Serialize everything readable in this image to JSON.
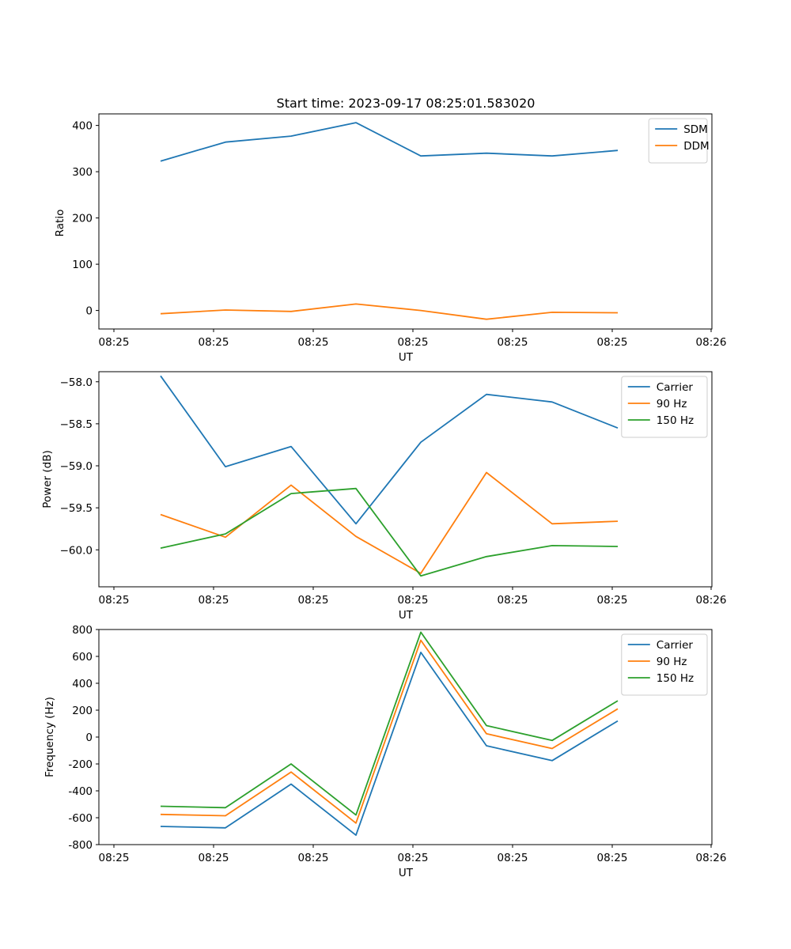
{
  "chart_data": [
    {
      "type": "line",
      "title": "Start time: 2023-09-17 08:25:01.583020",
      "xlabel": "UT",
      "ylabel": "Ratio",
      "x_ticks": [
        "08:25",
        "08:25",
        "08:25",
        "08:25",
        "08:25",
        "08:25",
        "08:25"
      ],
      "x_end_tick": "08:26",
      "y_ticks": [
        0,
        100,
        200,
        300,
        400
      ],
      "ylim": [
        -40,
        425
      ],
      "legend_position": "top-right",
      "series": [
        {
          "name": "SDM",
          "color": "#1f77b4",
          "values": [
            323,
            364,
            377,
            406,
            334,
            340,
            334,
            346
          ]
        },
        {
          "name": "DDM",
          "color": "#ff7f0e",
          "values": [
            -7,
            1,
            -2,
            14,
            0,
            -19,
            -4,
            -5
          ]
        }
      ]
    },
    {
      "type": "line",
      "title": "",
      "xlabel": "UT",
      "ylabel": "Power (dB)",
      "x_ticks": [
        "08:25",
        "08:25",
        "08:25",
        "08:25",
        "08:25",
        "08:25",
        "08:25"
      ],
      "x_end_tick": "08:26",
      "y_ticks": [
        "−58.0",
        "−58.5",
        "−59.0",
        "−59.5",
        "−60.0"
      ],
      "y_tick_values": [
        -58.0,
        -58.5,
        -59.0,
        -59.5,
        -60.0
      ],
      "ylim": [
        -60.44,
        -57.88
      ],
      "legend_position": "top-right",
      "series": [
        {
          "name": "Carrier",
          "color": "#1f77b4",
          "values": [
            -57.93,
            -59.01,
            -58.77,
            -59.69,
            -58.72,
            -58.15,
            -58.24,
            -58.55
          ]
        },
        {
          "name": "90 Hz",
          "color": "#ff7f0e",
          "values": [
            -59.58,
            -59.85,
            -59.23,
            -59.84,
            -60.28,
            -59.08,
            -59.69,
            -59.66
          ]
        },
        {
          "name": "150 Hz",
          "color": "#2ca02c",
          "values": [
            -59.98,
            -59.81,
            -59.33,
            -59.27,
            -60.31,
            -60.08,
            -59.95,
            -59.96
          ]
        }
      ]
    },
    {
      "type": "line",
      "title": "",
      "xlabel": "UT",
      "ylabel": "Frequency (Hz)",
      "x_ticks": [
        "08:25",
        "08:25",
        "08:25",
        "08:25",
        "08:25",
        "08:25",
        "08:25"
      ],
      "x_end_tick": "08:26",
      "y_ticks": [
        -800,
        -600,
        -400,
        -200,
        0,
        200,
        400,
        600,
        800
      ],
      "ylim": [
        -800,
        800
      ],
      "legend_position": "top-right",
      "series": [
        {
          "name": "Carrier",
          "color": "#1f77b4",
          "values": [
            -665,
            -675,
            -350,
            -730,
            630,
            -65,
            -175,
            120
          ]
        },
        {
          "name": "90 Hz",
          "color": "#ff7f0e",
          "values": [
            -575,
            -585,
            -260,
            -640,
            720,
            25,
            -85,
            210
          ]
        },
        {
          "name": "150 Hz",
          "color": "#2ca02c",
          "values": [
            -515,
            -525,
            -200,
            -580,
            780,
            85,
            -25,
            270
          ]
        }
      ]
    }
  ]
}
